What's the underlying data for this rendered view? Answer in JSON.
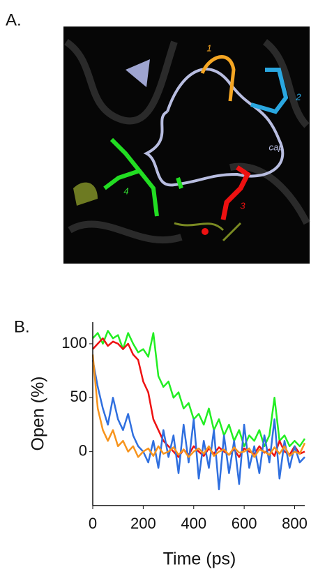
{
  "panel_labels": [
    "A.",
    "B."
  ],
  "image_labels": [
    {
      "text": "1",
      "color": "#f5a623"
    },
    {
      "text": "2",
      "color": "#2aa7e0"
    },
    {
      "text": "cap",
      "color": "#b8bde0"
    },
    {
      "text": "4",
      "color": "#33dd33"
    },
    {
      "text": "3",
      "color": "#ee1111"
    }
  ],
  "chart_data": {
    "type": "line",
    "xlabel": "Time (ps)",
    "ylabel": "Open (%)",
    "x": [
      0,
      20,
      40,
      60,
      80,
      100,
      120,
      140,
      160,
      180,
      200,
      220,
      240,
      260,
      280,
      300,
      320,
      340,
      360,
      380,
      400,
      420,
      440,
      460,
      480,
      500,
      520,
      540,
      560,
      580,
      600,
      620,
      640,
      660,
      680,
      700,
      720,
      740,
      760,
      780,
      800,
      820,
      840
    ],
    "series": [
      {
        "color": "#22ee22",
        "values": [
          105,
          110,
          100,
          112,
          105,
          108,
          95,
          110,
          100,
          92,
          95,
          88,
          110,
          70,
          60,
          65,
          50,
          55,
          40,
          45,
          30,
          35,
          25,
          40,
          20,
          30,
          15,
          25,
          10,
          20,
          5,
          15,
          10,
          20,
          5,
          15,
          50,
          10,
          15,
          5,
          10,
          5,
          12
        ]
      },
      {
        "color": "#ee1111",
        "values": [
          95,
          100,
          105,
          98,
          102,
          100,
          95,
          100,
          90,
          85,
          65,
          55,
          30,
          20,
          10,
          5,
          0,
          -5,
          2,
          -3,
          5,
          0,
          -4,
          3,
          -2,
          4,
          0,
          -3,
          2,
          -5,
          3,
          0,
          -2,
          5,
          -1,
          2,
          -4,
          10,
          0,
          -3,
          5,
          -2,
          0
        ]
      },
      {
        "color": "#2f6fdf",
        "values": [
          85,
          60,
          40,
          25,
          50,
          30,
          20,
          35,
          15,
          5,
          0,
          -10,
          10,
          -15,
          20,
          -5,
          15,
          -20,
          25,
          -10,
          30,
          -25,
          10,
          -15,
          20,
          -35,
          15,
          -20,
          10,
          -30,
          25,
          -15,
          5,
          -20,
          15,
          -10,
          30,
          -25,
          10,
          -15,
          5,
          -10,
          -5
        ]
      },
      {
        "color": "#f7941d",
        "values": [
          90,
          40,
          20,
          10,
          20,
          5,
          10,
          0,
          5,
          -5,
          0,
          3,
          -4,
          5,
          -2,
          0,
          4,
          -3,
          2,
          -5,
          0,
          3,
          -2,
          5,
          -4,
          0,
          2,
          -3,
          4,
          -1,
          0,
          3,
          -5,
          2,
          0,
          -3,
          4,
          -2,
          5,
          -4,
          0,
          -2,
          8
        ]
      }
    ],
    "xlim": [
      0,
      840
    ],
    "xticks": [
      0,
      200,
      400,
      600,
      800
    ],
    "ylim": [
      -50,
      120
    ],
    "yticks": [
      0,
      50,
      100
    ]
  }
}
